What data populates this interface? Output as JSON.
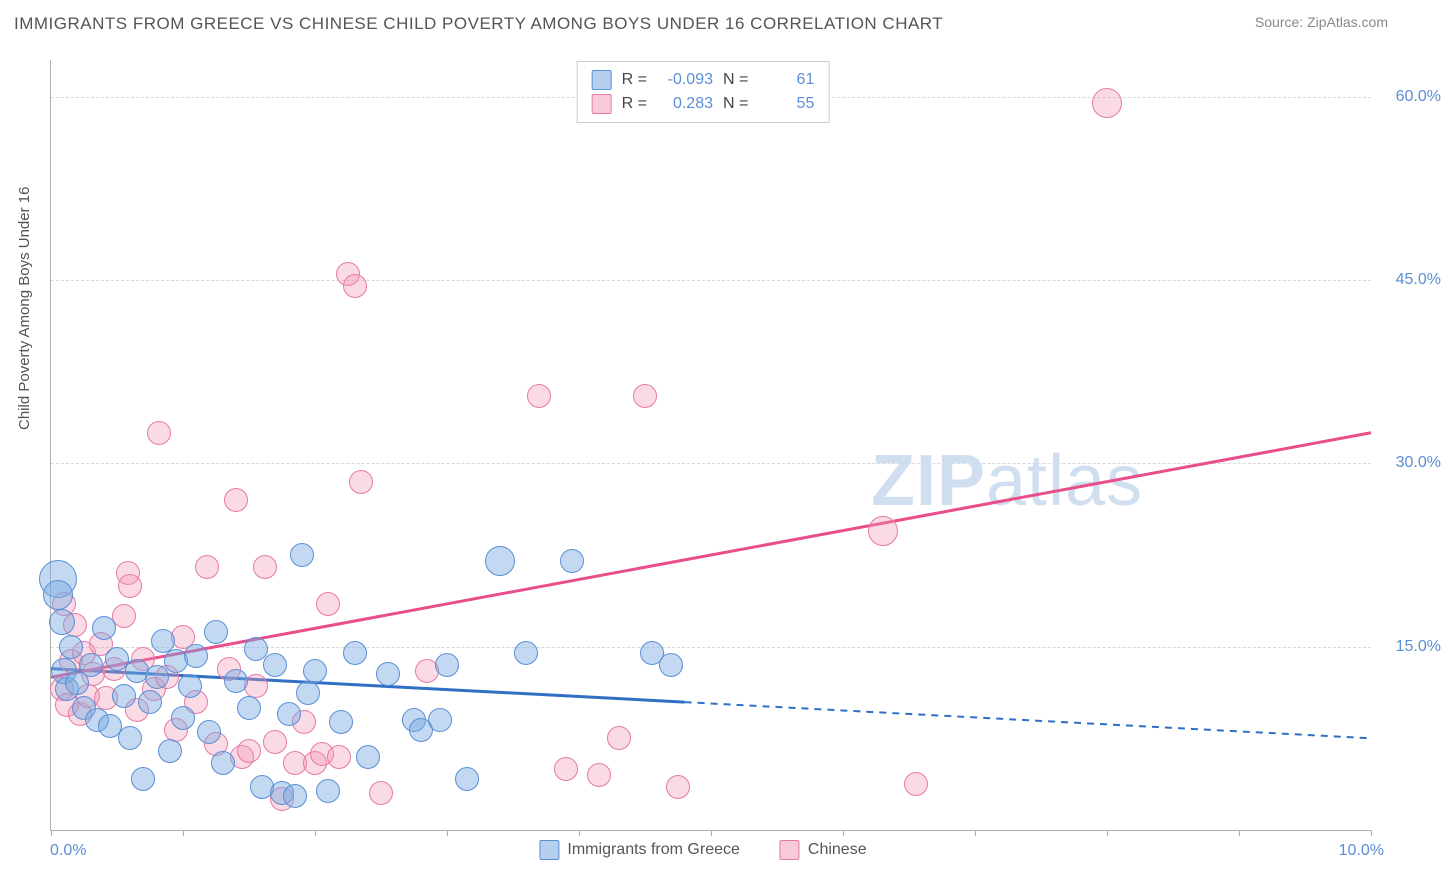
{
  "title": "IMMIGRANTS FROM GREECE VS CHINESE CHILD POVERTY AMONG BOYS UNDER 16 CORRELATION CHART",
  "source": "Source: ZipAtlas.com",
  "watermark": {
    "bold": "ZIP",
    "light": "atlas"
  },
  "ylabel": "Child Poverty Among Boys Under 16",
  "x_axis": {
    "min_label": "0.0%",
    "max_label": "10.0%",
    "min": 0.0,
    "max": 10.0,
    "tick_count": 11
  },
  "y_axis": {
    "min": 0.0,
    "max": 63.0,
    "ticks": [
      15.0,
      30.0,
      45.0,
      60.0
    ],
    "tick_labels": [
      "15.0%",
      "30.0%",
      "45.0%",
      "60.0%"
    ]
  },
  "legend_top": {
    "rows": [
      {
        "swatch": "blue",
        "r_label": "R =",
        "r_value": "-0.093",
        "n_label": "N =",
        "n_value": "61"
      },
      {
        "swatch": "pink",
        "r_label": "R =",
        "r_value": "0.283",
        "n_label": "N =",
        "n_value": "55"
      }
    ]
  },
  "legend_bottom": {
    "items": [
      {
        "swatch": "blue",
        "label": "Immigrants from Greece"
      },
      {
        "swatch": "pink",
        "label": "Chinese"
      }
    ]
  },
  "series": {
    "blue": {
      "color_fill": "rgba(120,170,225,0.45)",
      "color_stroke": "#5a8fd6",
      "marker_radius": 11,
      "trend": {
        "y_at_xmin": 13.2,
        "y_at_xmax": 7.5,
        "solid_until_x": 4.8,
        "color": "#2f6fc4",
        "width": 3
      },
      "points": [
        [
          0.05,
          20.5,
          18
        ],
        [
          0.05,
          19.2,
          14
        ],
        [
          0.08,
          17.0,
          12
        ],
        [
          0.1,
          13.0,
          12
        ],
        [
          0.12,
          11.5,
          11
        ],
        [
          0.15,
          15.0,
          11
        ],
        [
          0.2,
          12.0,
          11
        ],
        [
          0.25,
          10.0,
          11
        ],
        [
          0.3,
          13.5,
          11
        ],
        [
          0.35,
          9.0,
          11
        ],
        [
          0.4,
          16.5,
          11
        ],
        [
          0.45,
          8.5,
          11
        ],
        [
          0.5,
          14.0,
          11
        ],
        [
          0.55,
          11.0,
          11
        ],
        [
          0.6,
          7.5,
          11
        ],
        [
          0.65,
          13.0,
          11
        ],
        [
          0.7,
          4.2,
          11
        ],
        [
          0.75,
          10.5,
          11
        ],
        [
          0.8,
          12.5,
          11
        ],
        [
          0.85,
          15.5,
          11
        ],
        [
          0.9,
          6.5,
          11
        ],
        [
          0.95,
          13.8,
          11
        ],
        [
          1.0,
          9.2,
          11
        ],
        [
          1.05,
          11.8,
          11
        ],
        [
          1.1,
          14.2,
          11
        ],
        [
          1.2,
          8.0,
          11
        ],
        [
          1.25,
          16.2,
          11
        ],
        [
          1.3,
          5.5,
          11
        ],
        [
          1.4,
          12.2,
          11
        ],
        [
          1.5,
          10.0,
          11
        ],
        [
          1.55,
          14.8,
          11
        ],
        [
          1.6,
          3.5,
          11
        ],
        [
          1.7,
          13.5,
          11
        ],
        [
          1.75,
          3.0,
          11
        ],
        [
          1.8,
          9.5,
          11
        ],
        [
          1.85,
          2.8,
          11
        ],
        [
          1.9,
          22.5,
          11
        ],
        [
          1.95,
          11.2,
          11
        ],
        [
          2.0,
          13.0,
          11
        ],
        [
          2.1,
          3.2,
          11
        ],
        [
          2.2,
          8.8,
          11
        ],
        [
          2.3,
          14.5,
          11
        ],
        [
          2.4,
          6.0,
          11
        ],
        [
          2.55,
          12.8,
          11
        ],
        [
          2.75,
          9.0,
          11
        ],
        [
          2.8,
          8.2,
          11
        ],
        [
          2.95,
          9.0,
          11
        ],
        [
          3.0,
          13.5,
          11
        ],
        [
          3.15,
          4.2,
          11
        ],
        [
          3.4,
          22.0,
          14
        ],
        [
          3.6,
          14.5,
          11
        ],
        [
          3.95,
          22.0,
          11
        ],
        [
          4.55,
          14.5,
          11
        ],
        [
          4.7,
          13.5,
          11
        ]
      ]
    },
    "pink": {
      "color_fill": "rgba(240,150,180,0.35)",
      "color_stroke": "#e67aa5",
      "marker_radius": 11,
      "trend": {
        "y_at_xmin": 12.5,
        "y_at_xmax": 32.5,
        "solid_until_x": 10.0,
        "color": "#e84f8a",
        "width": 3
      },
      "points": [
        [
          0.08,
          11.5,
          11
        ],
        [
          0.1,
          18.5,
          11
        ],
        [
          0.12,
          10.2,
          11
        ],
        [
          0.15,
          13.8,
          11
        ],
        [
          0.18,
          16.8,
          11
        ],
        [
          0.22,
          9.5,
          11
        ],
        [
          0.25,
          14.5,
          11
        ],
        [
          0.28,
          11.0,
          11
        ],
        [
          0.32,
          12.8,
          11
        ],
        [
          0.38,
          15.2,
          11
        ],
        [
          0.42,
          10.8,
          11
        ],
        [
          0.48,
          13.2,
          11
        ],
        [
          0.55,
          17.5,
          11
        ],
        [
          0.58,
          21.0,
          11
        ],
        [
          0.6,
          20.0,
          11
        ],
        [
          0.65,
          9.8,
          11
        ],
        [
          0.7,
          14.0,
          11
        ],
        [
          0.78,
          11.5,
          11
        ],
        [
          0.82,
          32.5,
          11
        ],
        [
          0.88,
          12.5,
          11
        ],
        [
          0.95,
          8.2,
          11
        ],
        [
          1.0,
          15.8,
          11
        ],
        [
          1.1,
          10.5,
          11
        ],
        [
          1.18,
          21.5,
          11
        ],
        [
          1.25,
          7.0,
          11
        ],
        [
          1.35,
          13.2,
          11
        ],
        [
          1.4,
          27.0,
          11
        ],
        [
          1.45,
          6.0,
          11
        ],
        [
          1.5,
          6.5,
          11
        ],
        [
          1.55,
          11.8,
          11
        ],
        [
          1.62,
          21.5,
          11
        ],
        [
          1.7,
          7.2,
          11
        ],
        [
          1.75,
          2.5,
          11
        ],
        [
          1.85,
          5.5,
          11
        ],
        [
          1.92,
          8.8,
          11
        ],
        [
          2.0,
          5.5,
          11
        ],
        [
          2.05,
          6.2,
          11
        ],
        [
          2.1,
          18.5,
          11
        ],
        [
          2.18,
          6.0,
          11
        ],
        [
          2.25,
          45.5,
          11
        ],
        [
          2.3,
          44.5,
          11
        ],
        [
          2.35,
          28.5,
          11
        ],
        [
          2.5,
          3.0,
          11
        ],
        [
          2.85,
          13.0,
          11
        ],
        [
          3.7,
          35.5,
          11
        ],
        [
          3.9,
          5.0,
          11
        ],
        [
          4.15,
          4.5,
          11
        ],
        [
          4.3,
          7.5,
          11
        ],
        [
          4.5,
          35.5,
          11
        ],
        [
          4.75,
          3.5,
          11
        ],
        [
          6.3,
          24.5,
          14
        ],
        [
          6.55,
          3.8,
          11
        ],
        [
          8.0,
          59.5,
          14
        ]
      ]
    }
  },
  "colors": {
    "title": "#555555",
    "axis": "#b0b0b0",
    "grid": "#d8d8d8",
    "tick_label": "#5a8fd6",
    "watermark": "#d0dff0"
  }
}
